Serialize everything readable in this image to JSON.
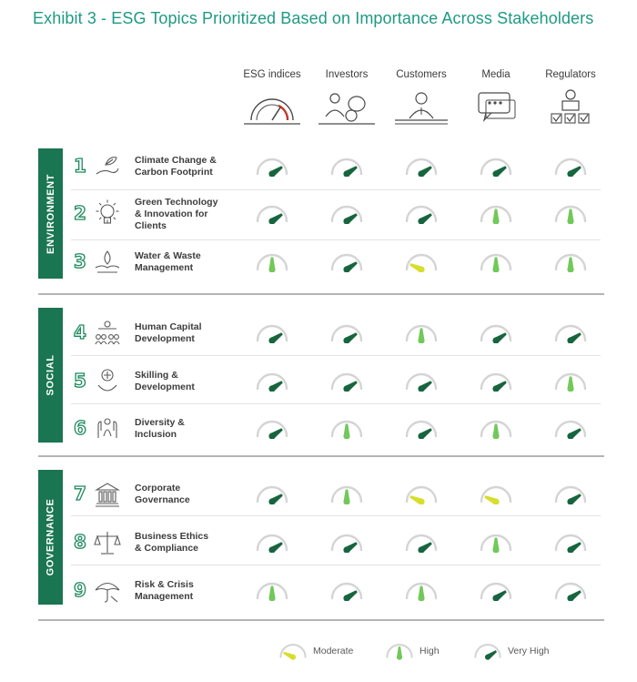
{
  "title": "Exhibit 3 - ESG Topics Prioritized Based on Importance Across Stakeholders",
  "colors": {
    "moderate": "#d6de2e",
    "high": "#72c85a",
    "very_high": "#17653f",
    "band": "#1a7552",
    "title": "#1e9a84"
  },
  "stakeholders": [
    {
      "label": "ESG indices",
      "icon": "gauge-icon"
    },
    {
      "label": "Investors",
      "icon": "investor-icon"
    },
    {
      "label": "Customers",
      "icon": "customer-icon"
    },
    {
      "label": "Media",
      "icon": "media-icon"
    },
    {
      "label": "Regulators",
      "icon": "regulator-icon"
    }
  ],
  "sections": [
    {
      "label": "ENVIRONMENT"
    },
    {
      "label": "SOCIAL"
    },
    {
      "label": "GOVERNANCE"
    }
  ],
  "topics": [
    {
      "number": "1",
      "lines": [
        "Climate Change &",
        "Carbon Footprint"
      ],
      "icon": "hand-leaf-icon"
    },
    {
      "number": "2",
      "lines": [
        "Green Technology",
        "& Innovation for",
        "Clients"
      ],
      "icon": "lightbulb-icon"
    },
    {
      "number": "3",
      "lines": [
        "Water & Waste",
        "Management"
      ],
      "icon": "water-hand-icon"
    },
    {
      "number": "4",
      "lines": [
        "Human Capital",
        "Development"
      ],
      "icon": "people-icon"
    },
    {
      "number": "5",
      "lines": [
        "Skilling &",
        "Development"
      ],
      "icon": "skill-hand-icon"
    },
    {
      "number": "6",
      "lines": [
        "Diversity &",
        "Inclusion"
      ],
      "icon": "diversity-hands-icon"
    },
    {
      "number": "7",
      "lines": [
        "Corporate",
        "Governance"
      ],
      "icon": "building-icon"
    },
    {
      "number": "8",
      "lines": [
        "Business Ethics",
        "& Compliance"
      ],
      "icon": "scales-icon"
    },
    {
      "number": "9",
      "lines": [
        "Risk & Crisis",
        "Management"
      ],
      "icon": "umbrella-icon"
    }
  ],
  "legend": [
    {
      "level": "moderate",
      "label": "Moderate"
    },
    {
      "level": "high",
      "label": "High"
    },
    {
      "level": "very_high",
      "label": "Very High"
    }
  ],
  "chart_data": {
    "type": "heatmap",
    "title": "Exhibit 3 - ESG Topics Prioritized Based on Importance Across Stakeholders",
    "columns": [
      "ESG indices",
      "Investors",
      "Customers",
      "Media",
      "Regulators"
    ],
    "rows": [
      "Climate Change & Carbon Footprint",
      "Green Technology & Innovation for Clients",
      "Water & Waste Management",
      "Human Capital Development",
      "Skilling & Development",
      "Diversity & Inclusion",
      "Corporate Governance",
      "Business Ethics & Compliance",
      "Risk & Crisis Management"
    ],
    "row_groups": [
      "ENVIRONMENT",
      "ENVIRONMENT",
      "ENVIRONMENT",
      "SOCIAL",
      "SOCIAL",
      "SOCIAL",
      "GOVERNANCE",
      "GOVERNANCE",
      "GOVERNANCE"
    ],
    "scale": [
      "Moderate",
      "High",
      "Very High"
    ],
    "values": [
      [
        "Very High",
        "Very High",
        "Very High",
        "Very High",
        "Very High"
      ],
      [
        "Very High",
        "Very High",
        "Very High",
        "High",
        "High"
      ],
      [
        "High",
        "Very High",
        "Moderate",
        "High",
        "High"
      ],
      [
        "Very High",
        "Very High",
        "High",
        "Very High",
        "Very High"
      ],
      [
        "Very High",
        "Very High",
        "Very High",
        "Very High",
        "High"
      ],
      [
        "Very High",
        "High",
        "Very High",
        "High",
        "Very High"
      ],
      [
        "Very High",
        "High",
        "Moderate",
        "Moderate",
        "Very High"
      ],
      [
        "Very High",
        "Very High",
        "Very High",
        "High",
        "Very High"
      ],
      [
        "High",
        "Very High",
        "High",
        "Very High",
        "Very High"
      ]
    ]
  }
}
